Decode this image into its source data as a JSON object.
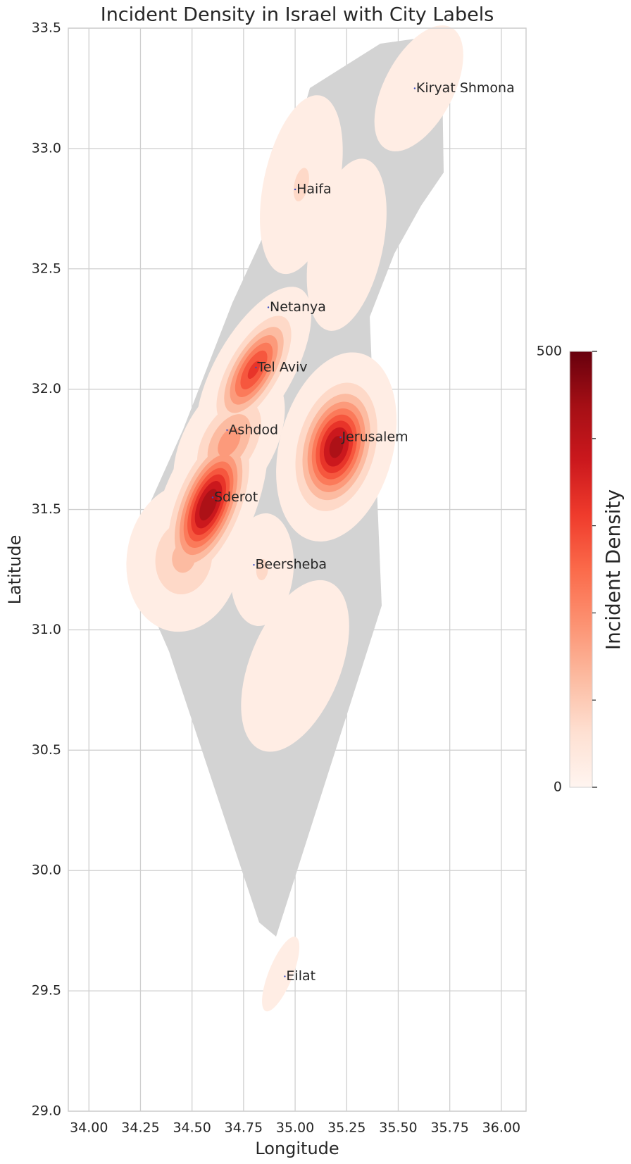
{
  "chart_data": {
    "type": "density_map",
    "title": "Incident Density in Israel with City Labels",
    "x_label": "Longitude",
    "y_label": "Latitude",
    "xlim": [
      33.9,
      36.12
    ],
    "xticks": [
      {
        "value": 34,
        "label": "34.00"
      },
      34.25,
      {
        "value": 34.5,
        "label": "34.50"
      },
      34.75,
      {
        "value": 35,
        "label": "35.00"
      },
      35.25,
      {
        "value": 35.5,
        "label": "35.50"
      },
      35.75,
      {
        "value": 36,
        "label": "36.00"
      }
    ],
    "ylim": [
      29,
      33.5
    ],
    "yticks": [
      {
        "value": 29,
        "label": "29.0"
      },
      29.5,
      {
        "value": 30,
        "label": "30.0"
      },
      30.5,
      {
        "value": 31,
        "label": "31.0"
      },
      31.5,
      {
        "value": 32,
        "label": "32.0"
      },
      32.5,
      {
        "value": 33,
        "label": "33.0"
      },
      33.5
    ],
    "grid": true,
    "cities": [
      {
        "name": "Kiryat Shmona",
        "lon": 35.58,
        "lat": 33.25
      },
      {
        "name": "Haifa",
        "lon": 35.0,
        "lat": 32.83
      },
      {
        "name": "Netanya",
        "lon": 34.87,
        "lat": 32.34
      },
      {
        "name": "Tel Aviv",
        "lon": 34.81,
        "lat": 32.09
      },
      {
        "name": "Ashdod",
        "lon": 34.67,
        "lat": 31.83
      },
      {
        "name": "Jerusalem",
        "lon": 35.22,
        "lat": 31.8
      },
      {
        "name": "Sderot",
        "lon": 34.6,
        "lat": 31.55
      },
      {
        "name": "Beersheba",
        "lon": 34.8,
        "lat": 31.27
      },
      {
        "name": "Eilat",
        "lon": 34.95,
        "lat": 29.56
      }
    ],
    "density": [
      {
        "lon": 35.2,
        "lat": 31.76,
        "value": 430
      },
      {
        "lon": 34.58,
        "lat": 31.52,
        "value": 450
      },
      {
        "lon": 34.8,
        "lat": 32.08,
        "value": 320
      },
      {
        "lon": 34.68,
        "lat": 31.78,
        "value": 180
      },
      {
        "lon": 34.46,
        "lat": 31.3,
        "value": 120
      },
      {
        "lon": 35.03,
        "lat": 32.85,
        "value": 60
      },
      {
        "lon": 35.25,
        "lat": 32.6,
        "value": 50
      },
      {
        "lon": 35.6,
        "lat": 33.25,
        "value": 40
      },
      {
        "lon": 34.84,
        "lat": 31.25,
        "value": 60
      },
      {
        "lon": 35.0,
        "lat": 30.85,
        "value": 50
      },
      {
        "lon": 34.93,
        "lat": 29.57,
        "value": 30
      }
    ],
    "colorbar_label": "Incident Density",
    "clim": [
      0,
      500
    ],
    "cbar_ticks": [
      0,
      500
    ],
    "cbar_minor_ticks": [
      100,
      200,
      300,
      400
    ]
  }
}
